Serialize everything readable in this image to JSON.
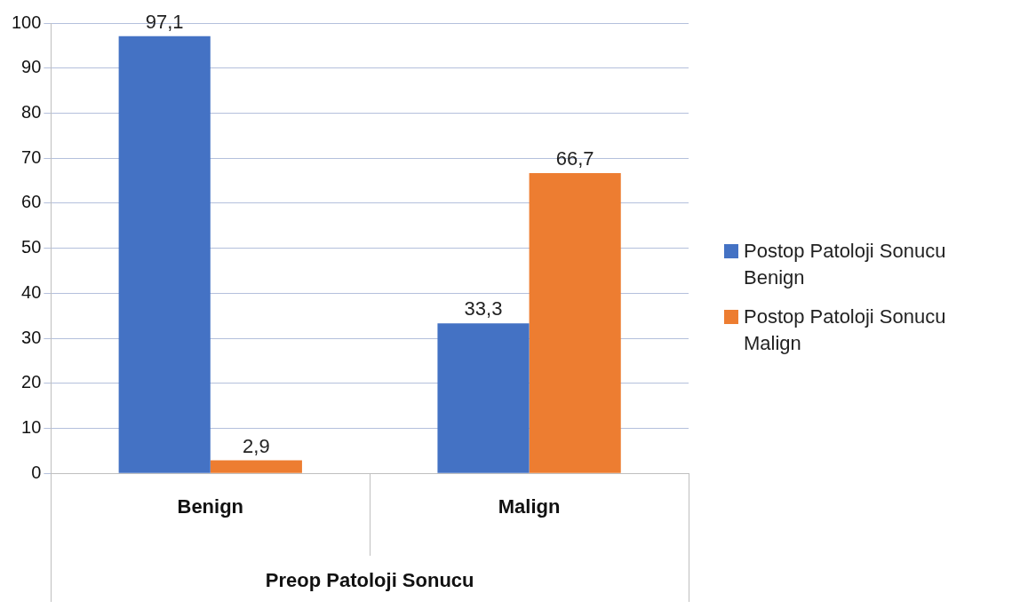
{
  "chart_data": {
    "type": "bar",
    "xlabel": "Preop Patoloji Sonucu",
    "categories": [
      "Benign",
      "Malign"
    ],
    "series": [
      {
        "name": "Postop Patoloji Sonucu Benign",
        "color": "#4472c4",
        "values": [
          97.1,
          33.3
        ],
        "value_labels": [
          "97,1",
          "33,3"
        ]
      },
      {
        "name": "Postop Patoloji Sonucu Malign",
        "color": "#ed7d31",
        "values": [
          2.9,
          66.7
        ],
        "value_labels": [
          "2,9",
          "66,7"
        ]
      }
    ],
    "ylim": [
      0,
      100
    ],
    "yticks": [
      0,
      10,
      20,
      30,
      40,
      50,
      60,
      70,
      80,
      90,
      100
    ],
    "grid": "y",
    "legend": "right"
  }
}
